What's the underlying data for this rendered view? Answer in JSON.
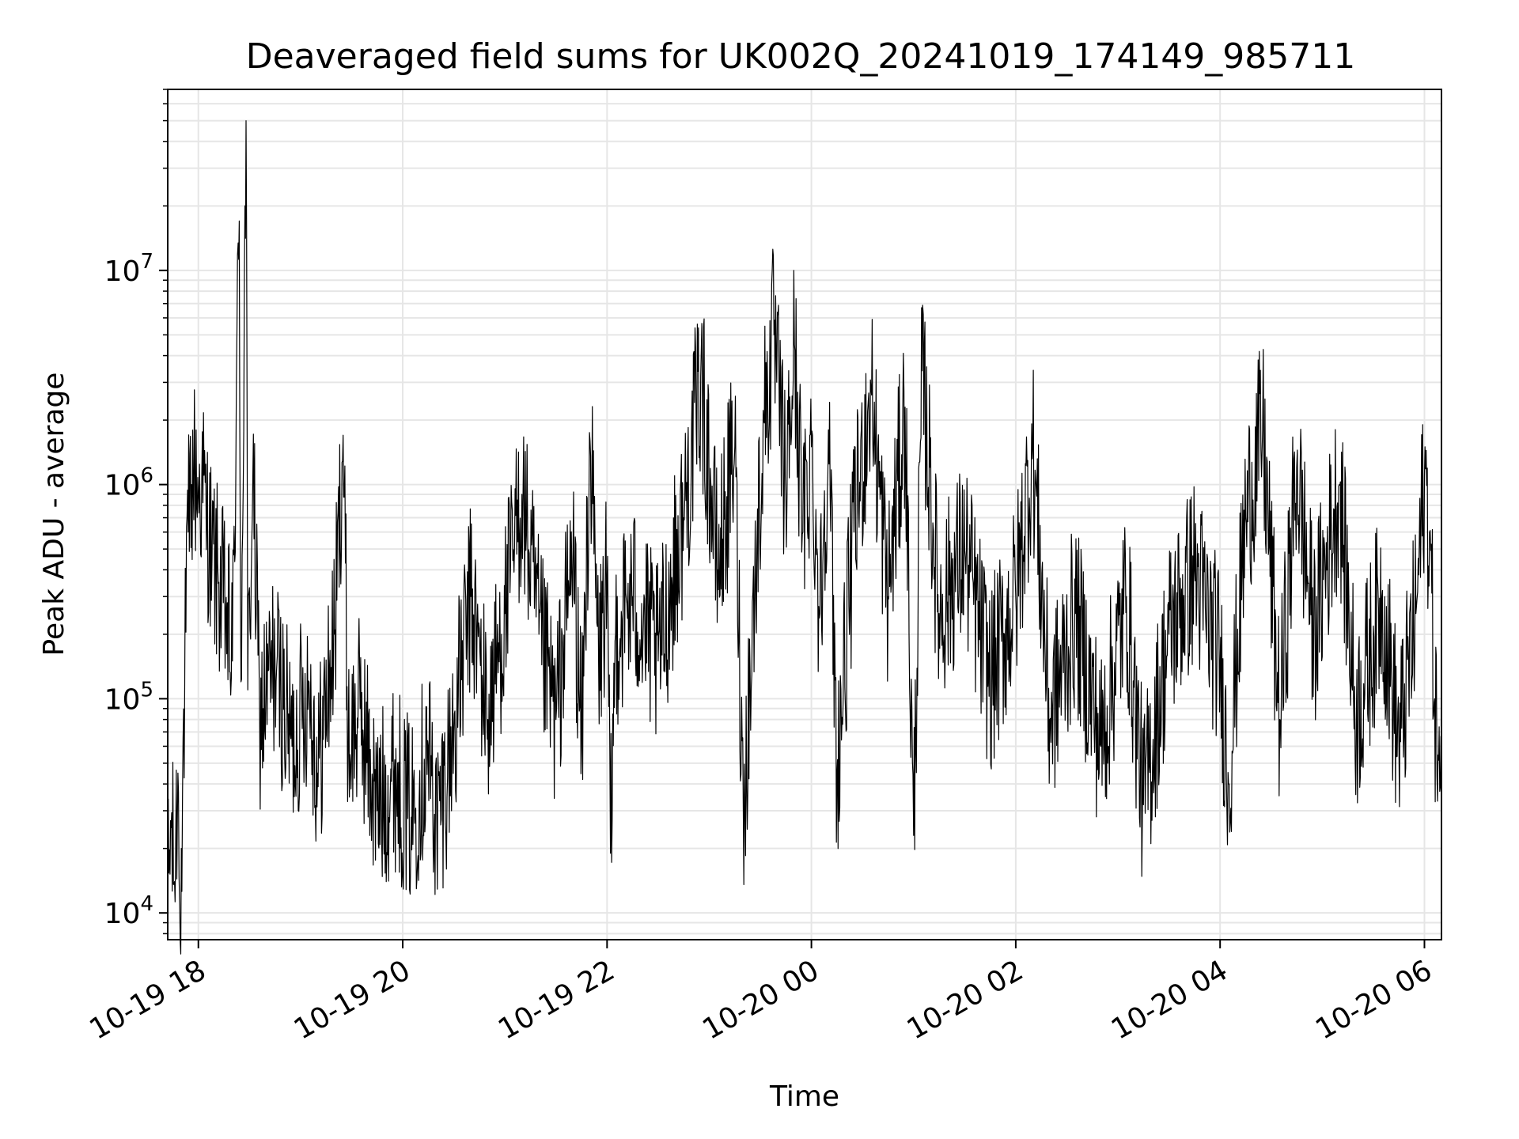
{
  "chart_data": {
    "type": "line",
    "title": "Deaveraged field sums for UK002Q_20241019_174149_985711",
    "xlabel": "Time",
    "ylabel": "Peak ADU - average",
    "y_scale": "log",
    "ylim": [
      7500,
      70000000
    ],
    "xlim": [
      "2024-10-19 17:42",
      "2024-10-20 06:10"
    ],
    "x_ticks": [
      "2024-10-19 18:00",
      "2024-10-19 20:00",
      "2024-10-19 22:00",
      "2024-10-20 00:00",
      "2024-10-20 02:00",
      "2024-10-20 04:00",
      "2024-10-20 06:00"
    ],
    "x_tick_labels": [
      "10-19 18",
      "10-19 20",
      "10-19 22",
      "10-20 00",
      "10-20 02",
      "10-20 04",
      "10-20 06"
    ],
    "y_ticks": [
      10000,
      100000,
      1000000,
      10000000
    ],
    "y_tick_labels": [
      {
        "base": "10",
        "exp": "4"
      },
      {
        "base": "10",
        "exp": "5"
      },
      {
        "base": "10",
        "exp": "6"
      },
      {
        "base": "10",
        "exp": "7"
      }
    ],
    "grid": true,
    "line_color": "#000000",
    "grid_color": "#e6e6e6",
    "series": [
      {
        "points": [
          [
            "2024-10-19 17:42",
            12000
          ],
          [
            "2024-10-19 17:44",
            25000
          ],
          [
            "2024-10-19 17:46",
            14000
          ],
          [
            "2024-10-19 17:48",
            45000
          ],
          [
            "2024-10-19 17:49",
            11000
          ],
          [
            "2024-10-19 17:50",
            20000
          ],
          [
            "2024-10-19 17:52",
            120000
          ],
          [
            "2024-10-19 17:54",
            600000
          ],
          [
            "2024-10-19 17:56",
            1000000
          ],
          [
            "2024-10-19 17:58",
            1200000
          ],
          [
            "2024-10-19 18:00",
            900000
          ],
          [
            "2024-10-19 18:02",
            1050000
          ],
          [
            "2024-10-19 18:05",
            700000
          ],
          [
            "2024-10-19 18:08",
            450000
          ],
          [
            "2024-10-19 18:12",
            350000
          ],
          [
            "2024-10-19 18:16",
            250000
          ],
          [
            "2024-10-19 18:20",
            150000
          ],
          [
            "2024-10-19 18:24",
            17000000
          ],
          [
            "2024-10-19 18:25",
            120000
          ],
          [
            "2024-10-19 18:28",
            50000000
          ],
          [
            "2024-10-19 18:29",
            110000
          ],
          [
            "2024-10-19 18:32",
            1100000
          ],
          [
            "2024-10-19 18:36",
            80000
          ],
          [
            "2024-10-19 18:45",
            150000
          ],
          [
            "2024-10-19 18:55",
            60000
          ],
          [
            "2024-10-19 19:05",
            120000
          ],
          [
            "2024-10-19 19:10",
            45000
          ],
          [
            "2024-10-19 19:20",
            200000
          ],
          [
            "2024-10-19 19:25",
            1700000
          ],
          [
            "2024-10-19 19:28",
            60000
          ],
          [
            "2024-10-19 19:35",
            90000
          ],
          [
            "2024-10-19 19:45",
            30000
          ],
          [
            "2024-10-19 19:55",
            45000
          ],
          [
            "2024-10-19 20:05",
            28000
          ],
          [
            "2024-10-19 20:15",
            60000
          ],
          [
            "2024-10-19 20:20",
            25000
          ],
          [
            "2024-10-19 20:30",
            70000
          ],
          [
            "2024-10-19 20:40",
            300000
          ],
          [
            "2024-10-19 20:50",
            80000
          ],
          [
            "2024-10-19 21:00",
            250000
          ],
          [
            "2024-10-19 21:10",
            900000
          ],
          [
            "2024-10-19 21:20",
            200000
          ],
          [
            "2024-10-19 21:30",
            80000
          ],
          [
            "2024-10-19 21:40",
            500000
          ],
          [
            "2024-10-19 21:45",
            60000
          ],
          [
            "2024-10-19 21:50",
            1600000
          ],
          [
            "2024-10-19 21:55",
            150000
          ],
          [
            "2024-10-19 22:00",
            350000
          ],
          [
            "2024-10-19 22:02",
            19000
          ],
          [
            "2024-10-19 22:05",
            200000
          ],
          [
            "2024-10-19 22:15",
            300000
          ],
          [
            "2024-10-19 22:30",
            150000
          ],
          [
            "2024-10-19 22:45",
            700000
          ],
          [
            "2024-10-19 22:55",
            3200000
          ],
          [
            "2024-10-19 23:05",
            400000
          ],
          [
            "2024-10-19 23:15",
            1500000
          ],
          [
            "2024-10-19 23:20",
            30000
          ],
          [
            "2024-10-19 23:28",
            500000
          ],
          [
            "2024-10-19 23:32",
            2000000
          ],
          [
            "2024-10-19 23:38",
            5000000
          ],
          [
            "2024-10-19 23:45",
            900000
          ],
          [
            "2024-10-19 23:50",
            4500000
          ],
          [
            "2024-10-19 23:55",
            600000
          ],
          [
            "2024-10-20 00:00",
            1500000
          ],
          [
            "2024-10-20 00:05",
            250000
          ],
          [
            "2024-10-20 00:10",
            1800000
          ],
          [
            "2024-10-20 00:15",
            45000
          ],
          [
            "2024-10-20 00:25",
            600000
          ],
          [
            "2024-10-20 00:35",
            2800000
          ],
          [
            "2024-10-20 00:45",
            300000
          ],
          [
            "2024-10-20 00:55",
            2300000
          ],
          [
            "2024-10-20 01:00",
            23000
          ],
          [
            "2024-10-20 01:05",
            3400000
          ],
          [
            "2024-10-20 01:15",
            250000
          ],
          [
            "2024-10-20 01:30",
            500000
          ],
          [
            "2024-10-20 01:45",
            120000
          ],
          [
            "2024-10-20 02:00",
            300000
          ],
          [
            "2024-10-20 02:10",
            1500000
          ],
          [
            "2024-10-20 02:20",
            80000
          ],
          [
            "2024-10-20 02:35",
            250000
          ],
          [
            "2024-10-20 02:50",
            60000
          ],
          [
            "2024-10-20 03:05",
            300000
          ],
          [
            "2024-10-20 03:15",
            32000
          ],
          [
            "2024-10-20 03:30",
            200000
          ],
          [
            "2024-10-20 03:45",
            400000
          ],
          [
            "2024-10-20 04:00",
            150000
          ],
          [
            "2024-10-20 04:05",
            40000
          ],
          [
            "2024-10-20 04:15",
            700000
          ],
          [
            "2024-10-20 04:25",
            1800000
          ],
          [
            "2024-10-20 04:35",
            80000
          ],
          [
            "2024-10-20 04:45",
            1200000
          ],
          [
            "2024-10-20 04:55",
            200000
          ],
          [
            "2024-10-20 05:10",
            1000000
          ],
          [
            "2024-10-20 05:20",
            80000
          ],
          [
            "2024-10-20 05:35",
            300000
          ],
          [
            "2024-10-20 05:45",
            60000
          ],
          [
            "2024-10-20 05:55",
            250000
          ],
          [
            "2024-10-20 06:00",
            1100000
          ],
          [
            "2024-10-20 06:03",
            600000
          ],
          [
            "2024-10-20 06:06",
            100000
          ],
          [
            "2024-10-20 06:10",
            28000
          ]
        ]
      }
    ]
  }
}
